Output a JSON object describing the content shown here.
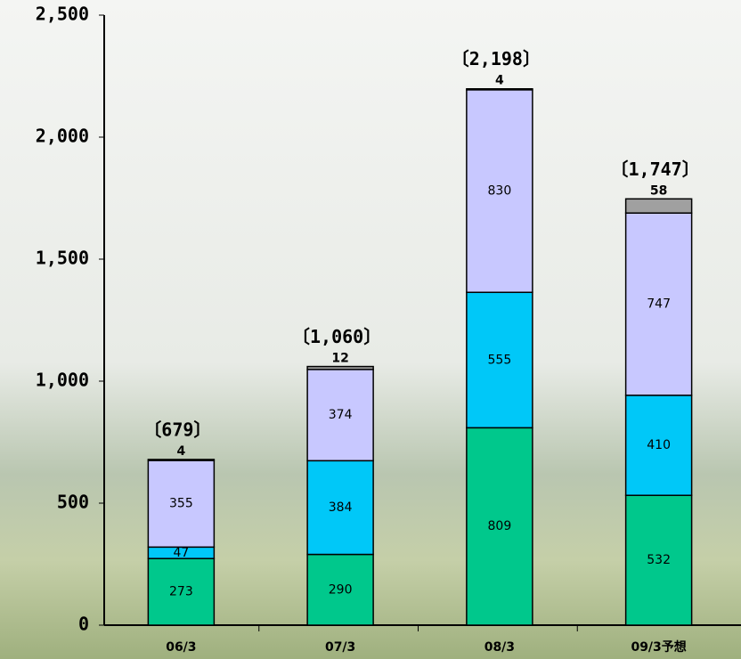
{
  "chart_data": {
    "type": "stacked_bar",
    "categories": [
      "06/3",
      "07/3",
      "08/3",
      "09/3予想"
    ],
    "series": [
      {
        "color": "#00c88c",
        "values": [
          273,
          290,
          809,
          532
        ]
      },
      {
        "color": "#00c8f8",
        "values": [
          47,
          384,
          555,
          410
        ]
      },
      {
        "color": "#c8c8ff",
        "values": [
          355,
          374,
          830,
          747
        ]
      },
      {
        "color": "#a0a0a0",
        "values": [
          4,
          12,
          4,
          58
        ]
      }
    ],
    "totals": {
      "values": [
        679,
        1060,
        2198,
        1747
      ],
      "value_labels": [
        "〔679〕",
        "〔1,060〕",
        "〔2,198〕",
        "〔1,747〕"
      ]
    },
    "ylim": [
      0,
      2500
    ],
    "yticks": [
      0,
      500,
      {
        "value": 1000,
        "label": "1,000"
      },
      {
        "value": 1500,
        "label": "1,500"
      },
      {
        "value": 2000,
        "label": "2,000"
      },
      {
        "value": 2500,
        "label": "2,500"
      }
    ]
  }
}
